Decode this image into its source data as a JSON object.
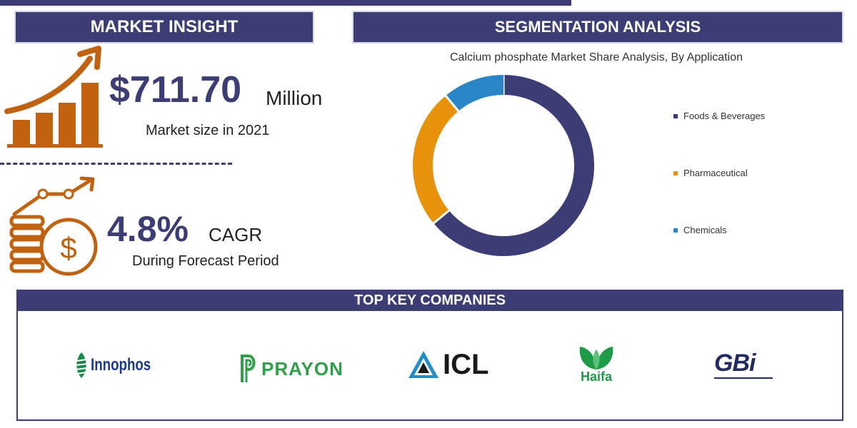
{
  "colors": {
    "primary": "#3b3d74",
    "orange": "#e8910a",
    "blue": "#2a86c7",
    "icon_brown": "#c0620f"
  },
  "market_insight": {
    "heading": "MARKET INSIGHT",
    "market_value": "$711.70",
    "market_unit": "Million",
    "market_caption": "Market size in 2021",
    "cagr_value": "4.8%",
    "cagr_label": "CAGR",
    "cagr_caption": "During Forecast Period",
    "icons": [
      "growth-bar-chart-icon",
      "dollar-coins-growth-icon"
    ]
  },
  "segmentation": {
    "heading": "SEGMENTATION ANALYSIS"
  },
  "chart_data": {
    "type": "pie",
    "title": "Calcium phosphate Market Share Analysis, By Application",
    "donut": true,
    "categories": [
      "Foods & Beverages",
      "Pharmaceutical",
      "Chemicals"
    ],
    "values": [
      64,
      25,
      11
    ],
    "colors": [
      "#3b3d74",
      "#e8910a",
      "#2a86c7"
    ],
    "legend_position": "right"
  },
  "companies": {
    "heading": "TOP KEY COMPANIES",
    "logos": [
      {
        "name": "Innophos",
        "color": "#1a8a4a"
      },
      {
        "name": "PRAYON",
        "color": "#2fa049"
      },
      {
        "name": "ICL",
        "color": "#1a1a1a"
      },
      {
        "name": "Haifa",
        "color": "#1f9a47"
      },
      {
        "name": "GBi",
        "color": "#232a62"
      }
    ]
  }
}
